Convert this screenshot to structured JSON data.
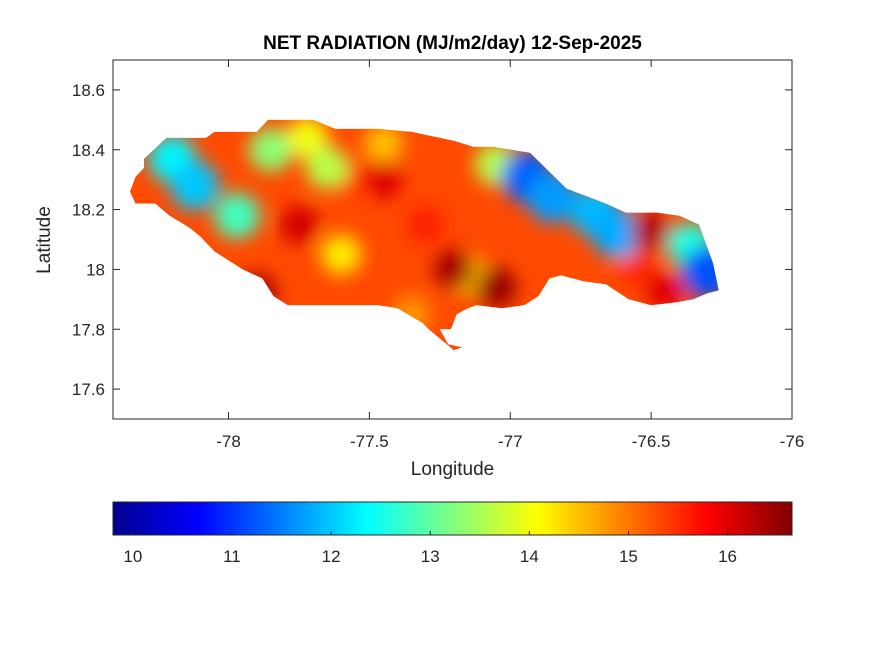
{
  "chart_data": {
    "type": "heatmap",
    "title": "NET RADIATION (MJ/m2/day) 12-Sep-2025",
    "xlabel": "Longitude",
    "ylabel": "Latitude",
    "xlim": [
      -78.41,
      -76.0
    ],
    "ylim": [
      17.5,
      18.7
    ],
    "x_ticks": [
      "-78",
      "-77.5",
      "-77",
      "-76.5",
      "-76"
    ],
    "y_ticks": [
      "18.6",
      "18.4",
      "18.2",
      "18",
      "17.8",
      "17.6"
    ],
    "colorbar": {
      "colormap": "jet",
      "range": [
        9.8,
        16.65
      ],
      "ticks": [
        "10",
        "11",
        "12",
        "13",
        "14",
        "15",
        "16"
      ],
      "placement": "bottom"
    },
    "grid": false,
    "map_region": "Jamaica",
    "outline": [
      [
        -78.35,
        18.26
      ],
      [
        -78.33,
        18.31
      ],
      [
        -78.3,
        18.34
      ],
      [
        -78.3,
        18.37
      ],
      [
        -78.22,
        18.44
      ],
      [
        -78.08,
        18.44
      ],
      [
        -78.05,
        18.46
      ],
      [
        -78.0,
        18.46
      ],
      [
        -77.9,
        18.46
      ],
      [
        -77.86,
        18.5
      ],
      [
        -77.7,
        18.5
      ],
      [
        -77.62,
        18.47
      ],
      [
        -77.47,
        18.47
      ],
      [
        -77.35,
        18.46
      ],
      [
        -77.2,
        18.43
      ],
      [
        -77.13,
        18.41
      ],
      [
        -77.06,
        18.41
      ],
      [
        -76.93,
        18.39
      ],
      [
        -76.8,
        18.27
      ],
      [
        -76.66,
        18.22
      ],
      [
        -76.59,
        18.19
      ],
      [
        -76.48,
        18.19
      ],
      [
        -76.4,
        18.18
      ],
      [
        -76.33,
        18.15
      ],
      [
        -76.28,
        18.02
      ],
      [
        -76.26,
        17.93
      ],
      [
        -76.3,
        17.92
      ],
      [
        -76.35,
        17.9
      ],
      [
        -76.41,
        17.89
      ],
      [
        -76.5,
        17.88
      ],
      [
        -76.58,
        17.9
      ],
      [
        -76.66,
        17.95
      ],
      [
        -76.74,
        17.96
      ],
      [
        -76.82,
        17.98
      ],
      [
        -76.86,
        17.97
      ],
      [
        -76.9,
        17.91
      ],
      [
        -76.95,
        17.88
      ],
      [
        -77.03,
        17.87
      ],
      [
        -77.12,
        17.88
      ],
      [
        -77.15,
        17.87
      ],
      [
        -77.19,
        17.85
      ],
      [
        -77.21,
        17.8
      ],
      [
        -77.25,
        17.8
      ],
      [
        -77.22,
        17.75
      ],
      [
        -77.17,
        17.74
      ],
      [
        -77.2,
        17.73
      ],
      [
        -77.29,
        17.8
      ],
      [
        -77.31,
        17.82
      ],
      [
        -77.4,
        17.87
      ],
      [
        -77.47,
        17.88
      ],
      [
        -77.55,
        17.88
      ],
      [
        -77.65,
        17.88
      ],
      [
        -77.7,
        17.88
      ],
      [
        -77.79,
        17.88
      ],
      [
        -77.84,
        17.91
      ],
      [
        -77.88,
        17.97
      ],
      [
        -77.95,
        18.0
      ],
      [
        -78.05,
        18.06
      ],
      [
        -78.1,
        18.11
      ],
      [
        -78.14,
        18.14
      ],
      [
        -78.21,
        18.18
      ],
      [
        -78.26,
        18.22
      ],
      [
        -78.33,
        18.22
      ],
      [
        -78.35,
        18.26
      ]
    ],
    "features": [
      {
        "lon": -77.3,
        "lat": 18.15,
        "value": 15.6
      },
      {
        "lon": -77.55,
        "lat": 18.3,
        "value": 15.4
      },
      {
        "lon": -76.55,
        "lat": 18.0,
        "value": 15.5
      },
      {
        "lon": -78.2,
        "lat": 18.37,
        "value": 12.3
      },
      {
        "lon": -78.12,
        "lat": 18.28,
        "value": 12.0
      },
      {
        "lon": -77.97,
        "lat": 18.18,
        "value": 12.8
      },
      {
        "lon": -77.85,
        "lat": 18.4,
        "value": 13.3
      },
      {
        "lon": -77.72,
        "lat": 18.44,
        "value": 14.0
      },
      {
        "lon": -77.65,
        "lat": 18.34,
        "value": 13.6
      },
      {
        "lon": -77.45,
        "lat": 18.42,
        "value": 14.5
      },
      {
        "lon": -77.05,
        "lat": 18.35,
        "value": 13.6
      },
      {
        "lon": -76.94,
        "lat": 18.31,
        "value": 11.3
      },
      {
        "lon": -76.85,
        "lat": 18.24,
        "value": 11.7
      },
      {
        "lon": -76.7,
        "lat": 18.19,
        "value": 11.9
      },
      {
        "lon": -76.62,
        "lat": 18.12,
        "value": 11.8
      },
      {
        "lon": -76.36,
        "lat": 18.08,
        "value": 12.6
      },
      {
        "lon": -76.3,
        "lat": 17.99,
        "value": 11.2
      },
      {
        "lon": -77.15,
        "lat": 17.98,
        "value": 14.4
      },
      {
        "lon": -77.6,
        "lat": 18.05,
        "value": 14.2
      },
      {
        "lon": -77.35,
        "lat": 17.85,
        "value": 14.8
      },
      {
        "lon": -77.9,
        "lat": 17.92,
        "value": 16.4
      },
      {
        "lon": -77.2,
        "lat": 18.0,
        "value": 16.4
      },
      {
        "lon": -77.05,
        "lat": 17.94,
        "value": 16.5
      },
      {
        "lon": -76.5,
        "lat": 18.13,
        "value": 16.3
      },
      {
        "lon": -77.45,
        "lat": 18.3,
        "value": 16.0
      },
      {
        "lon": -77.75,
        "lat": 18.15,
        "value": 16.1
      },
      {
        "lon": -76.45,
        "lat": 17.93,
        "value": 16.0
      }
    ]
  }
}
